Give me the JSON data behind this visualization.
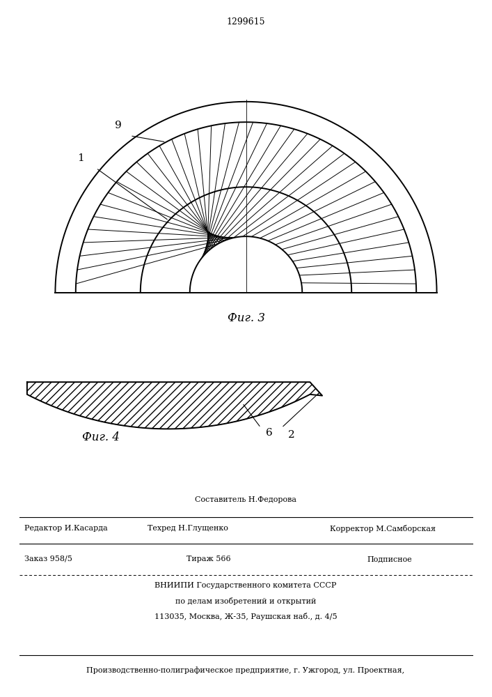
{
  "patent_number": "1299615",
  "bg_color": "#ffffff",
  "fig3_label": "Фиг. 3",
  "fig4_label": "Фиг. 4",
  "label_1": "1",
  "label_9": "9",
  "label_2": "2",
  "label_6": "6",
  "R_out2": 1.12,
  "R_outer": 1.0,
  "R_mid": 0.62,
  "R_small": 0.33,
  "num_blades": 38,
  "footer_sestavitel": "Составитель Н.Федорова",
  "footer_redaktor": "Редактор И.Касарда",
  "footer_tehred": "Техред Н.Глущенко",
  "footer_korrektor": "Корректор М.Самборская",
  "footer_zakaz": "Заказ 958/5",
  "footer_tirazh": "Тираж 566",
  "footer_podpisnoe": "Подписное",
  "footer_vniipи": "ВНИИПИ Государственного комитета СССР",
  "footer_podelu": "по делам изобретений и открытий",
  "footer_addr": "113035, Москва, Ж-35, Раушская наб., д. 4/5",
  "footer_last": "Производственно-полиграфическое предприятие, г. Ужгород, ул. Проектная,"
}
